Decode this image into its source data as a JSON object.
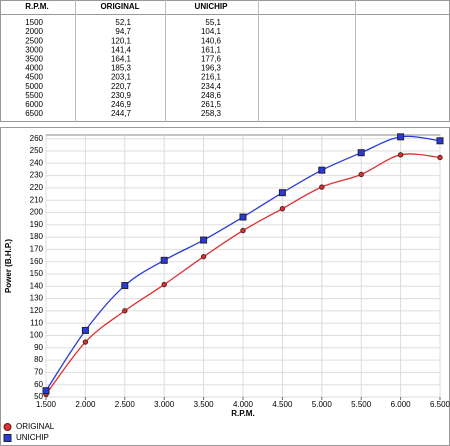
{
  "table": {
    "headers": [
      "R.P.M.",
      "ORIGINAL",
      "UNICHIP"
    ],
    "rows": [
      [
        "1500",
        "52,1",
        "55,1"
      ],
      [
        "2000",
        "94,7",
        "104,1"
      ],
      [
        "2500",
        "120,1",
        "140,6"
      ],
      [
        "3000",
        "141,4",
        "161,1"
      ],
      [
        "3500",
        "164,1",
        "177,6"
      ],
      [
        "4000",
        "185,3",
        "196,3"
      ],
      [
        "4500",
        "203,1",
        "216,1"
      ],
      [
        "5000",
        "220,7",
        "234,4"
      ],
      [
        "5500",
        "230,9",
        "248,6"
      ],
      [
        "6000",
        "246,9",
        "261,5"
      ],
      [
        "6500",
        "244,7",
        "258,3"
      ]
    ]
  },
  "chart_data": {
    "type": "line",
    "x_label": "R.P.M.",
    "y_label": "Power (B.H.P.)",
    "x": [
      1500,
      2000,
      2500,
      3000,
      3500,
      4000,
      4500,
      5000,
      5500,
      6000,
      6500
    ],
    "series": [
      {
        "name": "ORIGINAL",
        "color": "#e03030",
        "marker": "circle",
        "values": [
          52.1,
          94.7,
          120.1,
          141.4,
          164.1,
          185.3,
          203.1,
          220.7,
          230.9,
          246.9,
          244.7
        ]
      },
      {
        "name": "UNICHIP",
        "color": "#2a3ad8",
        "marker": "square",
        "values": [
          55.1,
          104.1,
          140.6,
          161.1,
          177.6,
          196.3,
          216.1,
          234.4,
          248.6,
          261.5,
          258.3
        ]
      }
    ],
    "xlim": [
      1500,
      6500
    ],
    "xticks": [
      {
        "value": 1500,
        "label": "1.500"
      },
      {
        "value": 2000,
        "label": "2.000"
      },
      {
        "value": 2500,
        "label": "2.500"
      },
      {
        "value": 3000,
        "label": "3.000"
      },
      {
        "value": 3500,
        "label": "3.500"
      },
      {
        "value": 4000,
        "label": "4.000"
      },
      {
        "value": 4500,
        "label": "4.500"
      },
      {
        "value": 5000,
        "label": "5.000"
      },
      {
        "value": 5500,
        "label": "5.500"
      },
      {
        "value": 6000,
        "label": "6.000"
      },
      {
        "value": 6500,
        "label": "6.500"
      }
    ],
    "ylim": [
      50,
      263
    ],
    "yticks": [
      50,
      60,
      70,
      80,
      90,
      100,
      110,
      120,
      130,
      140,
      150,
      160,
      170,
      180,
      190,
      200,
      210,
      220,
      230,
      240,
      250,
      260
    ],
    "grid": true,
    "legend": "bottom-left"
  }
}
